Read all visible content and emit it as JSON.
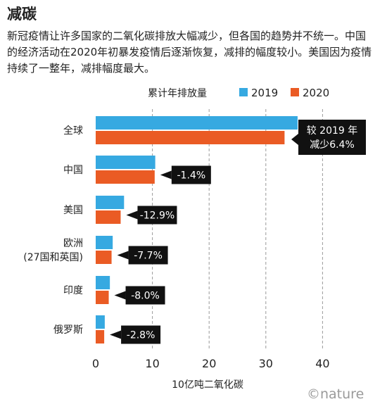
{
  "title": "减碳",
  "description": "新冠疫情让许多国家的二氧化碳排放大幅减少，但各国的趋势并不统一。中国的经济活动在2020年初暴发疫情后逐渐恢复，减排的幅度较小。美国因为疫情持续了一整年，减排幅度最大。",
  "credit": "©nature",
  "colors": {
    "2019": "#36a9e1",
    "2020": "#ea5b24",
    "callout_bg": "#111111",
    "callout_text": "#ffffff",
    "grid": "#9a9a9a"
  },
  "chart_data": {
    "type": "bar",
    "orientation": "horizontal",
    "legend_title": "累计年排放量",
    "categories": [
      "全球",
      "中国",
      "美国",
      "欧洲\n(27国和英国)",
      "印度",
      "俄罗斯"
    ],
    "series": [
      {
        "name": "2019",
        "values": [
          35.6,
          10.5,
          5.0,
          3.0,
          2.5,
          1.6
        ]
      },
      {
        "name": "2020",
        "values": [
          33.3,
          10.4,
          4.4,
          2.8,
          2.3,
          1.5
        ]
      }
    ],
    "annotations": [
      "较 2019 年\n减少6.4%",
      "-1.4%",
      "-12.9%",
      "-7.7%",
      "-8.0%",
      "-2.8%"
    ],
    "xticks": [
      0,
      10,
      20,
      30,
      40
    ],
    "xlim": [
      0,
      40
    ],
    "xlabel": "10亿吨二氧化碳",
    "grid": "x-dashed"
  }
}
